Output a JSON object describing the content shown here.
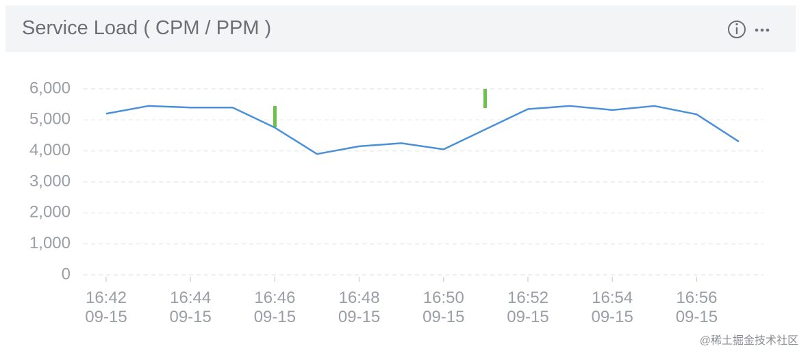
{
  "header": {
    "title": "Service Load ( CPM / PPM )"
  },
  "chart_data": {
    "type": "line",
    "categories": [
      "16:42\n09-15",
      null,
      "16:44\n09-15",
      null,
      "16:46\n09-15",
      null,
      "16:48\n09-15",
      null,
      "16:50\n09-15",
      null,
      "16:52\n09-15",
      null,
      "16:54\n09-15",
      null,
      "16:56\n09-15",
      null
    ],
    "values": [
      5200,
      5450,
      5400,
      5400,
      4750,
      3900,
      4150,
      4250,
      4050,
      4700,
      5350,
      5450,
      5320,
      5450,
      5180,
      4300
    ],
    "color": "#4a90d9",
    "ylim": [
      0,
      6000
    ],
    "yticks": [
      0,
      {
        "value": 1000,
        "label": "1,000"
      },
      {
        "value": 2000,
        "label": "2,000"
      },
      {
        "value": 3000,
        "label": "3,000"
      },
      {
        "value": 4000,
        "label": "4,000"
      },
      {
        "value": 5000,
        "label": "5,000"
      },
      {
        "value": 6000,
        "label": "6,000"
      }
    ],
    "grid": true
  },
  "watermark": "@稀土掘金技术社区"
}
